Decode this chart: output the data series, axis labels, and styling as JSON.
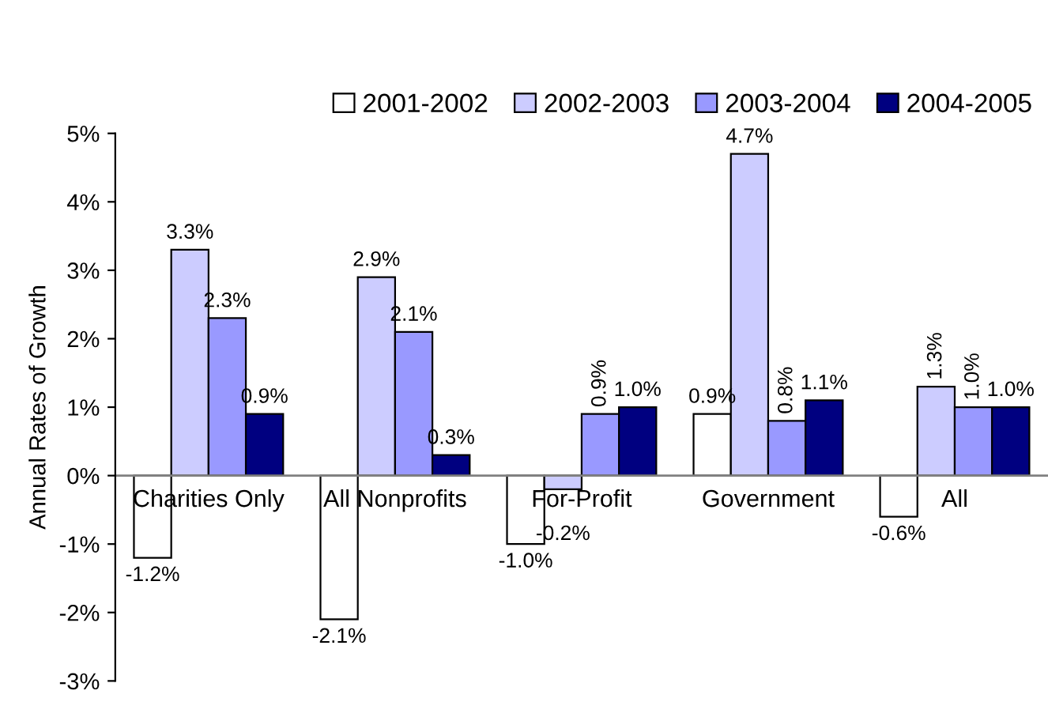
{
  "chart_data": {
    "type": "bar",
    "ylabel": "Annual Rates of Growth",
    "categories": [
      "Charities Only",
      "All Nonprofits",
      "For-Profit",
      "Government",
      "All"
    ],
    "series": [
      {
        "name": "2001-2002",
        "color": "#ffffff",
        "values": [
          -1.2,
          -2.1,
          -1.0,
          0.9,
          -0.6
        ],
        "value_labels": [
          "-1.2%",
          "-2.1%",
          "-1.0%",
          "0.9%",
          "-0.6%"
        ]
      },
      {
        "name": "2002-2003",
        "color": "#ccccff",
        "values": [
          3.3,
          2.9,
          -0.2,
          4.7,
          1.3
        ],
        "value_labels": [
          "3.3%",
          "2.9%",
          "-0.2%",
          "4.7%",
          "1.3%"
        ]
      },
      {
        "name": "2003-2004",
        "color": "#9999ff",
        "values": [
          2.3,
          2.1,
          0.9,
          0.8,
          1.0
        ],
        "value_labels": [
          "2.3%",
          "2.1%",
          "0.9%",
          "0.8%",
          "1.0%"
        ]
      },
      {
        "name": "2004-2005",
        "color": "#000080",
        "values": [
          0.9,
          0.3,
          1.0,
          1.1,
          1.0
        ],
        "value_labels": [
          "0.9%",
          "0.3%",
          "1.0%",
          "1.1%",
          "1.0%"
        ]
      }
    ],
    "ylim": [
      -3,
      5
    ],
    "yticks": [
      {
        "value": -3,
        "label": "-3%"
      },
      {
        "value": -2,
        "label": "-2%"
      },
      {
        "value": -1,
        "label": "-1%"
      },
      {
        "value": 0,
        "label": "0%"
      },
      {
        "value": 1,
        "label": "1%"
      },
      {
        "value": 2,
        "label": "2%"
      },
      {
        "value": 3,
        "label": "3%"
      },
      {
        "value": 4,
        "label": "4%"
      },
      {
        "value": 5,
        "label": "5%"
      }
    ],
    "legend": "top",
    "grid": false
  }
}
